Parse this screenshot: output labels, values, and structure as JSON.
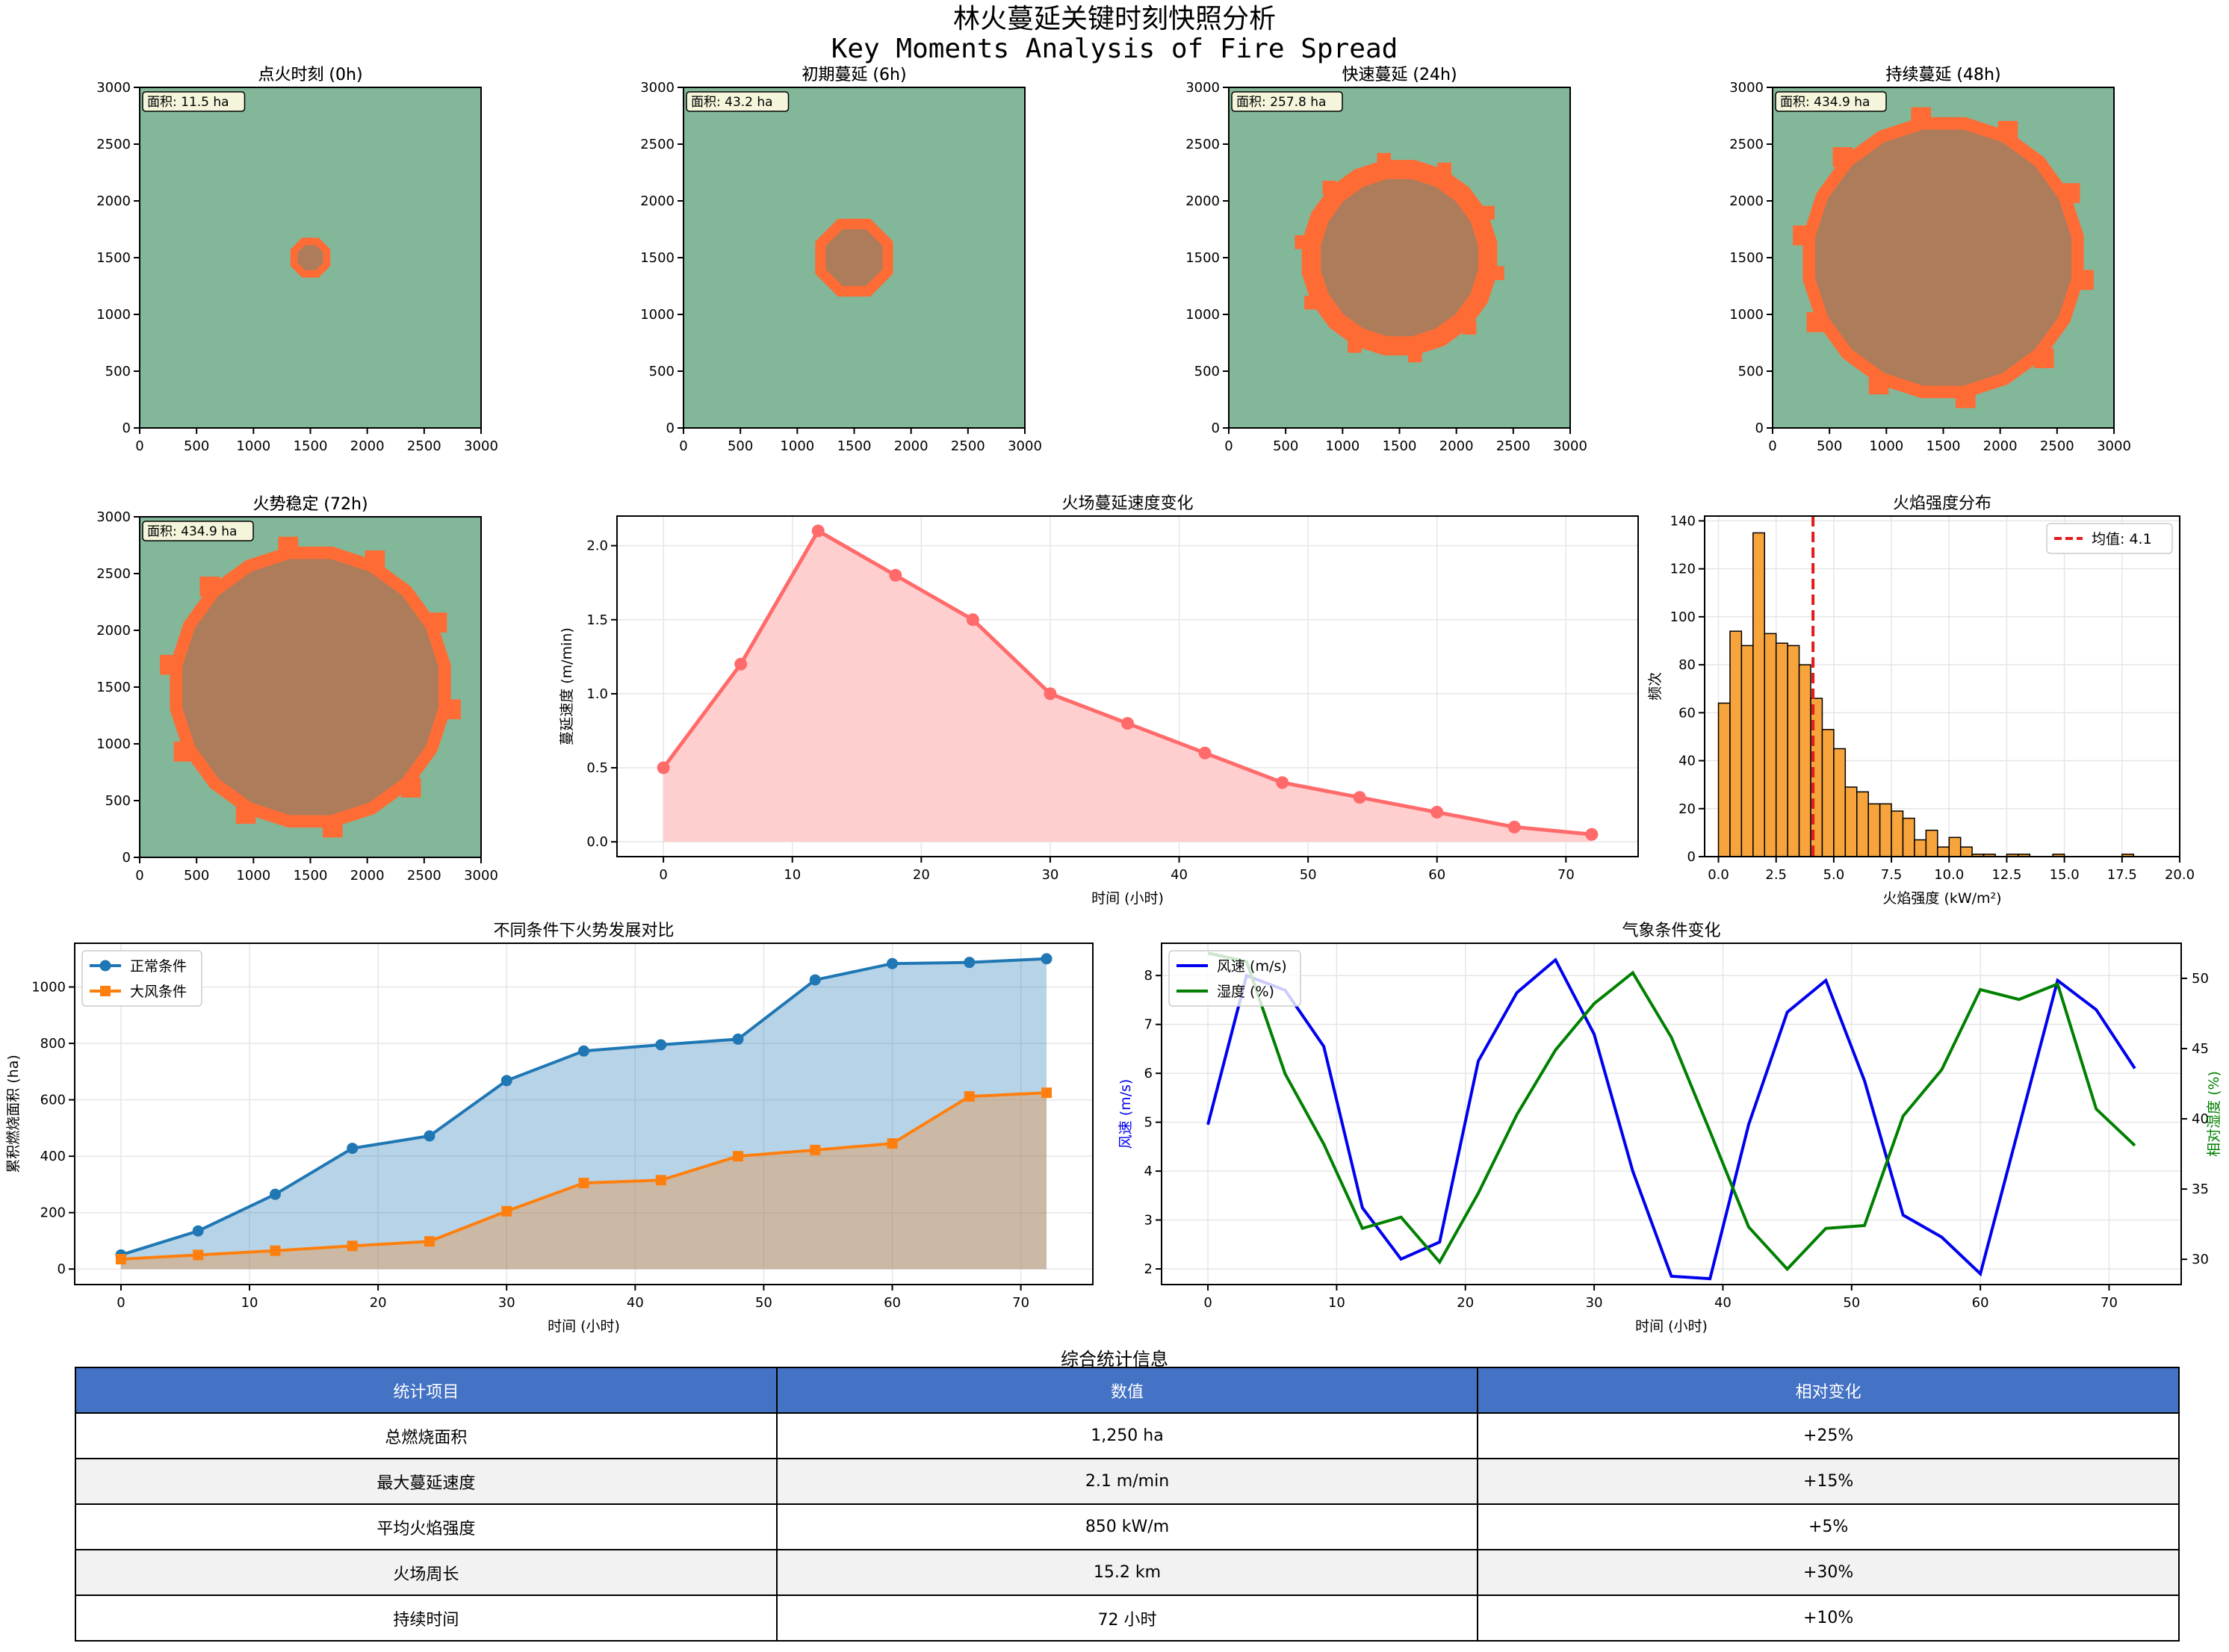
{
  "suptitle_cn": "林火蔓延关键时刻快照分析",
  "suptitle_en": "Key Moments Analysis of Fire Spread",
  "colors": {
    "forest": "#82b899",
    "burnt": "#ad7d5b",
    "fire_front": "#ff6b35",
    "speed_line": "#ff6b6b",
    "speed_fill": "#ffcfcf",
    "hist": "#f7a43c",
    "mean_line": "#e41a1c",
    "normal": "#1f77b4",
    "windy": "#ff7f0e",
    "wind": "#0000ee",
    "humidity": "#008000",
    "table_header": "#4472c4",
    "table_stripe": "#f2f2f2"
  },
  "chart_data": [
    {
      "type": "heatmap",
      "title": "点火时刻 (0h)",
      "area_label": "面积: 11.5 ha",
      "xlim": [
        0,
        3000
      ],
      "ylim": [
        0,
        3000
      ],
      "ticks": [
        0,
        500,
        1000,
        1500,
        2000,
        2500,
        3000
      ],
      "center": [
        1500,
        1500
      ],
      "burnt_radius": 120,
      "front_radius": 190
    },
    {
      "type": "heatmap",
      "title": "初期蔓延 (6h)",
      "area_label": "面积: 43.2 ha",
      "xlim": [
        0,
        3000
      ],
      "ylim": [
        0,
        3000
      ],
      "ticks": [
        0,
        500,
        1000,
        1500,
        2000,
        2500,
        3000
      ],
      "center": [
        1500,
        1500
      ],
      "burnt_radius": 270,
      "front_radius": 370
    },
    {
      "type": "heatmap",
      "title": "快速蔓延 (24h)",
      "area_label": "面积: 257.8 ha",
      "xlim": [
        0,
        3000
      ],
      "ylim": [
        0,
        3000
      ],
      "ticks": [
        0,
        500,
        1000,
        1500,
        2000,
        2500,
        3000
      ],
      "center": [
        1500,
        1500
      ],
      "burnt_radius": 700,
      "front_radius": 870
    },
    {
      "type": "heatmap",
      "title": "持续蔓延 (48h)",
      "area_label": "面积: 434.9 ha",
      "xlim": [
        0,
        3000
      ],
      "ylim": [
        0,
        3000
      ],
      "ticks": [
        0,
        500,
        1000,
        1500,
        2000,
        2500,
        3000
      ],
      "center": [
        1500,
        1500
      ],
      "burnt_radius": 1140,
      "front_radius": 1250
    },
    {
      "type": "heatmap",
      "title": "火势稳定 (72h)",
      "area_label": "面积: 434.9 ha",
      "xlim": [
        0,
        3000
      ],
      "ylim": [
        0,
        3000
      ],
      "ticks": [
        0,
        500,
        1000,
        1500,
        2000,
        2500,
        3000
      ],
      "center": [
        1500,
        1500
      ],
      "burnt_radius": 1140,
      "front_radius": 1250
    },
    {
      "type": "area",
      "title": "火场蔓延速度变化",
      "xlabel": "时间 (小时)",
      "ylabel": "蔓延速度 (m/min)",
      "x": [
        0,
        6,
        12,
        18,
        24,
        30,
        36,
        42,
        48,
        54,
        60,
        66,
        72
      ],
      "y": [
        0.5,
        1.2,
        2.1,
        1.8,
        1.5,
        1.0,
        0.8,
        0.6,
        0.4,
        0.3,
        0.2,
        0.1,
        0.05
      ],
      "xlim": [
        -3.6,
        75.6
      ],
      "ylim": [
        -0.1,
        2.2
      ],
      "xticks": [
        0,
        10,
        20,
        30,
        40,
        50,
        60,
        70
      ],
      "yticks": [
        0.0,
        0.5,
        1.0,
        1.5,
        2.0
      ],
      "grid": true
    },
    {
      "type": "bar",
      "title": "火焰强度分布",
      "xlabel": "火焰强度 (kW/m²)",
      "ylabel": "频次",
      "bin_start": 0.0,
      "bin_width": 0.5,
      "counts": [
        64,
        94,
        88,
        135,
        93,
        89,
        88,
        80,
        66,
        53,
        45,
        29,
        27,
        22,
        22,
        19,
        16,
        7,
        11,
        4,
        8,
        4,
        1,
        1,
        0,
        1,
        1,
        0,
        0,
        1,
        0,
        0,
        0,
        0,
        0,
        1,
        0,
        0
      ],
      "mean": 4.1,
      "legend": "均值: 4.1",
      "legend_position": "upper right",
      "xlim": [
        -0.6,
        20.0
      ],
      "ylim": [
        0,
        142
      ],
      "xticks": [
        0.0,
        2.5,
        5.0,
        7.5,
        10.0,
        12.5,
        15.0,
        17.5,
        20.0
      ],
      "yticks": [
        0,
        20,
        40,
        60,
        80,
        100,
        120,
        140
      ],
      "grid": true
    },
    {
      "type": "area",
      "title": "不同条件下火势发展对比",
      "xlabel": "时间 (小时)",
      "ylabel": "累积燃烧面积 (ha)",
      "x": [
        0,
        6,
        12,
        18,
        24,
        30,
        36,
        42,
        48,
        54,
        60,
        66,
        72
      ],
      "series": [
        {
          "name": "正常条件",
          "values": [
            50,
            135,
            265,
            428,
            472,
            668,
            773,
            795,
            815,
            1025,
            1083,
            1087,
            1100
          ],
          "marker": "circle"
        },
        {
          "name": "大风条件",
          "values": [
            35,
            50,
            65,
            82,
            98,
            205,
            305,
            315,
            400,
            422,
            445,
            612,
            625
          ],
          "marker": "square"
        }
      ],
      "legend_position": "upper left",
      "xlim": [
        -3.6,
        75.6
      ],
      "ylim": [
        -55,
        1155
      ],
      "xticks": [
        0,
        10,
        20,
        30,
        40,
        50,
        60,
        70
      ],
      "yticks": [
        0,
        200,
        400,
        600,
        800,
        1000
      ],
      "grid": true
    },
    {
      "type": "line",
      "title": "气象条件变化",
      "xlabel": "时间 (小时)",
      "ylabel_left": "风速 (m/s)",
      "ylabel_right": "相对湿度 (%)",
      "x": [
        0,
        3,
        6,
        9,
        12,
        15,
        18,
        21,
        24,
        27,
        30,
        33,
        36,
        39,
        42,
        45,
        48,
        51,
        54,
        57,
        60,
        63,
        66,
        69,
        72
      ],
      "series": [
        {
          "name": "风速 (m/s)",
          "axis": "left",
          "values": [
            4.95,
            8.0,
            7.7,
            6.55,
            3.25,
            2.2,
            2.55,
            6.25,
            7.65,
            8.32,
            6.8,
            4.0,
            1.85,
            1.8,
            4.95,
            7.25,
            7.9,
            5.85,
            3.1,
            2.65,
            1.9,
            4.9,
            7.9,
            7.3,
            6.1
          ]
        },
        {
          "name": "湿度 (%)",
          "axis": "right",
          "values": [
            51.8,
            51.2,
            43.2,
            38.2,
            32.2,
            33.0,
            29.8,
            34.7,
            40.3,
            44.9,
            48.2,
            50.4,
            45.8,
            39.1,
            32.3,
            29.3,
            32.2,
            32.4,
            40.2,
            43.5,
            49.2,
            48.5,
            49.6,
            40.7,
            38.1
          ]
        }
      ],
      "legend_position": "upper left",
      "xlim": [
        -3.6,
        75.6
      ],
      "ylim_left": [
        1.68,
        8.66
      ],
      "ylim_right": [
        28.2,
        52.5
      ],
      "xticks": [
        0,
        10,
        20,
        30,
        40,
        50,
        60,
        70
      ],
      "yticks_left": [
        2,
        3,
        4,
        5,
        6,
        7,
        8
      ],
      "yticks_right": [
        30,
        35,
        40,
        45,
        50
      ],
      "grid": true
    }
  ],
  "table": {
    "title": "综合统计信息",
    "headers": [
      "统计项目",
      "数值",
      "相对变化"
    ],
    "rows": [
      [
        "总燃烧面积",
        "1,250 ha",
        "+25%"
      ],
      [
        "最大蔓延速度",
        "2.1 m/min",
        "+15%"
      ],
      [
        "平均火焰强度",
        "850 kW/m",
        "+5%"
      ],
      [
        "火场周长",
        "15.2 km",
        "+30%"
      ],
      [
        "持续时间",
        "72 小时",
        "+10%"
      ]
    ]
  }
}
